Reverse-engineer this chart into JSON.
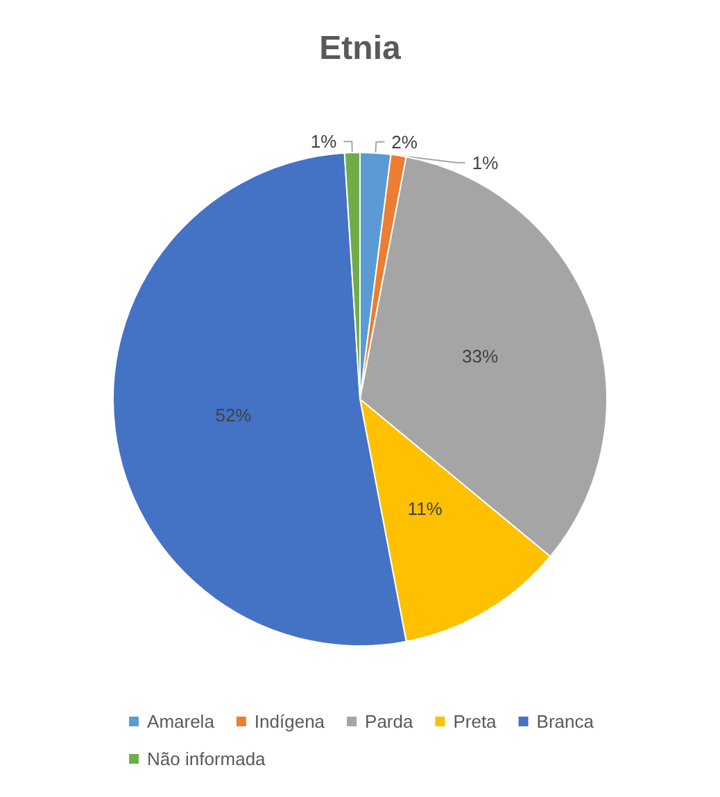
{
  "chart_data": {
    "type": "pie",
    "title": "Etnia",
    "categories": [
      "Amarela",
      "Indígena",
      "Parda",
      "Preta",
      "Branca",
      "Não informada"
    ],
    "values": [
      2,
      1,
      33,
      11,
      52,
      1
    ],
    "colors": [
      "#5b9bd5",
      "#ed7d31",
      "#a5a5a5",
      "#ffc000",
      "#4472c4",
      "#70ad47"
    ],
    "value_labels": [
      "2%",
      "1%",
      "33%",
      "11%",
      "52%",
      "1%"
    ],
    "legend": "bottom"
  }
}
